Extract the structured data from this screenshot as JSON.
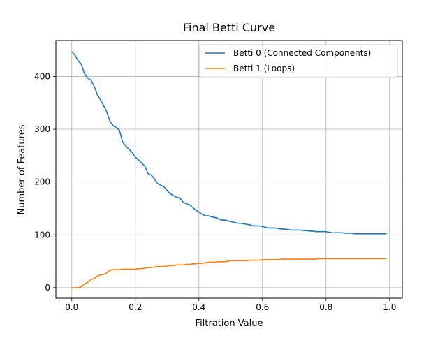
{
  "chart_data": {
    "type": "line",
    "title": "Final Betti Curve",
    "xlabel": "Filtration Value",
    "ylabel": "Number of Features",
    "xlim": [
      -0.05,
      1.04
    ],
    "ylim": [
      -20,
      468
    ],
    "x_ticks": [
      0.0,
      0.2,
      0.4,
      0.6,
      0.8,
      1.0
    ],
    "x_tick_labels": [
      "0.0",
      "0.2",
      "0.4",
      "0.6",
      "0.8",
      "1.0"
    ],
    "y_ticks": [
      0,
      100,
      200,
      300,
      400
    ],
    "y_tick_labels": [
      "0",
      "100",
      "200",
      "300",
      "400"
    ],
    "grid": true,
    "legend_position": "top-right",
    "series": [
      {
        "name": "Betti 0 (Connected Components)",
        "color": "#1f77b4",
        "points": [
          [
            0.0,
            447
          ],
          [
            0.01,
            440
          ],
          [
            0.02,
            430
          ],
          [
            0.03,
            423
          ],
          [
            0.04,
            405
          ],
          [
            0.05,
            397
          ],
          [
            0.06,
            393
          ],
          [
            0.07,
            382
          ],
          [
            0.08,
            366
          ],
          [
            0.09,
            356
          ],
          [
            0.1,
            345
          ],
          [
            0.11,
            333
          ],
          [
            0.12,
            315
          ],
          [
            0.13,
            307
          ],
          [
            0.14,
            303
          ],
          [
            0.15,
            298
          ],
          [
            0.16,
            276
          ],
          [
            0.17,
            268
          ],
          [
            0.18,
            262
          ],
          [
            0.19,
            256
          ],
          [
            0.2,
            247
          ],
          [
            0.21,
            242
          ],
          [
            0.22,
            236
          ],
          [
            0.23,
            230
          ],
          [
            0.24,
            216
          ],
          [
            0.25,
            213
          ],
          [
            0.26,
            206
          ],
          [
            0.27,
            197
          ],
          [
            0.28,
            194
          ],
          [
            0.29,
            191
          ],
          [
            0.3,
            184
          ],
          [
            0.31,
            178
          ],
          [
            0.32,
            174
          ],
          [
            0.33,
            171
          ],
          [
            0.34,
            170
          ],
          [
            0.35,
            162
          ],
          [
            0.36,
            159
          ],
          [
            0.37,
            157
          ],
          [
            0.38,
            152
          ],
          [
            0.39,
            147
          ],
          [
            0.4,
            143
          ],
          [
            0.41,
            139
          ],
          [
            0.42,
            136
          ],
          [
            0.43,
            136
          ],
          [
            0.44,
            134
          ],
          [
            0.45,
            133
          ],
          [
            0.46,
            131
          ],
          [
            0.47,
            128
          ],
          [
            0.48,
            128
          ],
          [
            0.49,
            127
          ],
          [
            0.5,
            125
          ],
          [
            0.51,
            124
          ],
          [
            0.52,
            122
          ],
          [
            0.53,
            122
          ],
          [
            0.54,
            121
          ],
          [
            0.55,
            120
          ],
          [
            0.56,
            119
          ],
          [
            0.57,
            117
          ],
          [
            0.58,
            117
          ],
          [
            0.59,
            117
          ],
          [
            0.6,
            116
          ],
          [
            0.61,
            114
          ],
          [
            0.62,
            113
          ],
          [
            0.63,
            113
          ],
          [
            0.64,
            113
          ],
          [
            0.65,
            112
          ],
          [
            0.66,
            111
          ],
          [
            0.67,
            111
          ],
          [
            0.68,
            110
          ],
          [
            0.69,
            109
          ],
          [
            0.7,
            109
          ],
          [
            0.71,
            109
          ],
          [
            0.72,
            109
          ],
          [
            0.73,
            108
          ],
          [
            0.74,
            108
          ],
          [
            0.75,
            107
          ],
          [
            0.76,
            107
          ],
          [
            0.77,
            106
          ],
          [
            0.78,
            106
          ],
          [
            0.79,
            106
          ],
          [
            0.8,
            106
          ],
          [
            0.81,
            105
          ],
          [
            0.82,
            104
          ],
          [
            0.83,
            104
          ],
          [
            0.84,
            104
          ],
          [
            0.85,
            104
          ],
          [
            0.86,
            103
          ],
          [
            0.87,
            103
          ],
          [
            0.88,
            103
          ],
          [
            0.89,
            102
          ],
          [
            0.9,
            102
          ],
          [
            0.91,
            102
          ],
          [
            0.92,
            102
          ],
          [
            0.93,
            102
          ],
          [
            0.94,
            102
          ],
          [
            0.95,
            102
          ],
          [
            0.96,
            102
          ],
          [
            0.97,
            102
          ],
          [
            0.98,
            102
          ],
          [
            0.99,
            102
          ]
        ]
      },
      {
        "name": "Betti 1 (Loops)",
        "color": "#ff7f0e",
        "points": [
          [
            0.0,
            0
          ],
          [
            0.01,
            0
          ],
          [
            0.02,
            0
          ],
          [
            0.03,
            2
          ],
          [
            0.04,
            7
          ],
          [
            0.05,
            10
          ],
          [
            0.06,
            15
          ],
          [
            0.07,
            17
          ],
          [
            0.08,
            22
          ],
          [
            0.09,
            24
          ],
          [
            0.1,
            25
          ],
          [
            0.11,
            28
          ],
          [
            0.12,
            33
          ],
          [
            0.13,
            34
          ],
          [
            0.14,
            34
          ],
          [
            0.15,
            34
          ],
          [
            0.16,
            35
          ],
          [
            0.17,
            35
          ],
          [
            0.18,
            35
          ],
          [
            0.19,
            35
          ],
          [
            0.2,
            35
          ],
          [
            0.21,
            36
          ],
          [
            0.22,
            36
          ],
          [
            0.23,
            37
          ],
          [
            0.24,
            38
          ],
          [
            0.25,
            38
          ],
          [
            0.26,
            39
          ],
          [
            0.27,
            40
          ],
          [
            0.28,
            40
          ],
          [
            0.29,
            40
          ],
          [
            0.3,
            41
          ],
          [
            0.31,
            42
          ],
          [
            0.32,
            42
          ],
          [
            0.33,
            43
          ],
          [
            0.34,
            43
          ],
          [
            0.35,
            43
          ],
          [
            0.36,
            44
          ],
          [
            0.37,
            44
          ],
          [
            0.38,
            45
          ],
          [
            0.39,
            45
          ],
          [
            0.4,
            46
          ],
          [
            0.41,
            46
          ],
          [
            0.42,
            47
          ],
          [
            0.43,
            48
          ],
          [
            0.44,
            48
          ],
          [
            0.45,
            48
          ],
          [
            0.46,
            49
          ],
          [
            0.47,
            49
          ],
          [
            0.48,
            49
          ],
          [
            0.49,
            50
          ],
          [
            0.5,
            51
          ],
          [
            0.51,
            51
          ],
          [
            0.52,
            51
          ],
          [
            0.53,
            51
          ],
          [
            0.54,
            51
          ],
          [
            0.55,
            51
          ],
          [
            0.56,
            52
          ],
          [
            0.57,
            52
          ],
          [
            0.58,
            52
          ],
          [
            0.59,
            52
          ],
          [
            0.6,
            53
          ],
          [
            0.61,
            53
          ],
          [
            0.62,
            53
          ],
          [
            0.63,
            53
          ],
          [
            0.64,
            53
          ],
          [
            0.65,
            53
          ],
          [
            0.66,
            54
          ],
          [
            0.67,
            54
          ],
          [
            0.68,
            54
          ],
          [
            0.69,
            54
          ],
          [
            0.7,
            54
          ],
          [
            0.71,
            54
          ],
          [
            0.72,
            54
          ],
          [
            0.73,
            54
          ],
          [
            0.74,
            54
          ],
          [
            0.75,
            54
          ],
          [
            0.76,
            54
          ],
          [
            0.77,
            54
          ],
          [
            0.78,
            55
          ],
          [
            0.79,
            55
          ],
          [
            0.8,
            55
          ],
          [
            0.81,
            55
          ],
          [
            0.82,
            55
          ],
          [
            0.83,
            55
          ],
          [
            0.84,
            55
          ],
          [
            0.85,
            55
          ],
          [
            0.86,
            55
          ],
          [
            0.87,
            55
          ],
          [
            0.88,
            55
          ],
          [
            0.89,
            55
          ],
          [
            0.9,
            55
          ],
          [
            0.91,
            55
          ],
          [
            0.92,
            55
          ],
          [
            0.93,
            55
          ],
          [
            0.94,
            55
          ],
          [
            0.95,
            55
          ],
          [
            0.96,
            55
          ],
          [
            0.97,
            55
          ],
          [
            0.98,
            55
          ],
          [
            0.99,
            55
          ]
        ]
      }
    ]
  }
}
